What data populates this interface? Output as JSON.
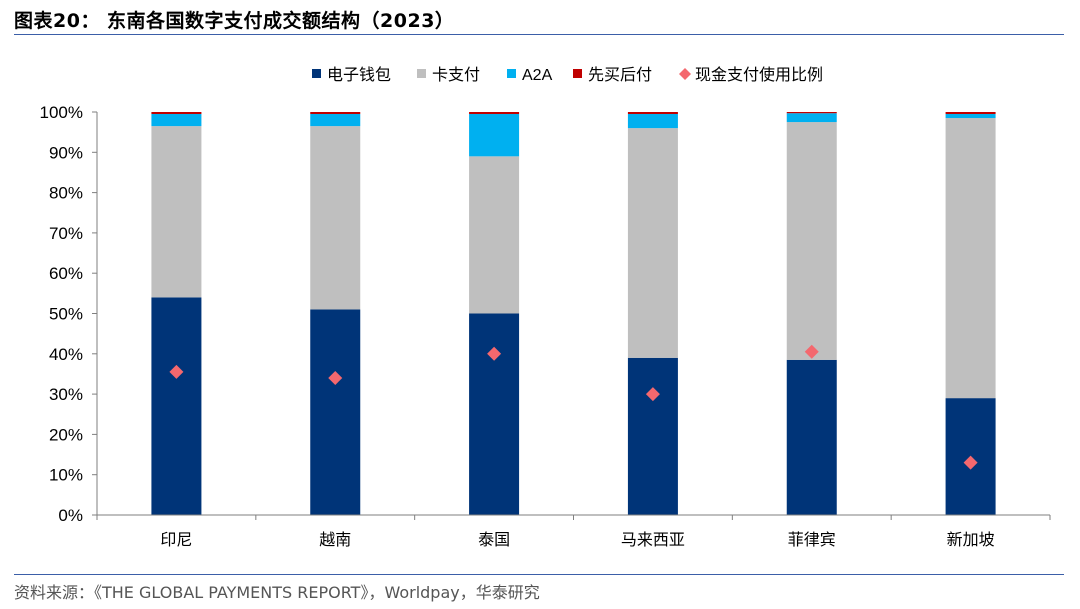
{
  "header": {
    "title": "图表20：  东南各国数字支付成交额结构（2023）"
  },
  "footer": {
    "source": "资料来源：《THE GLOBAL PAYMENTS REPORT》，Worldpay，华泰研究"
  },
  "colors": {
    "e_wallet": "#003478",
    "card": "#bfbfbf",
    "a2a": "#00b0f0",
    "bnpl": "#c00000",
    "cash": "#f4686e",
    "axis": "#7f7f7f"
  },
  "chart_data": {
    "type": "bar",
    "stacked": true,
    "categories": [
      "印尼",
      "越南",
      "泰国",
      "马来西亚",
      "菲律宾",
      "新加坡"
    ],
    "series": [
      {
        "name": "电子钱包",
        "values": [
          54,
          51,
          50,
          39,
          38.5,
          29
        ]
      },
      {
        "name": "卡支付",
        "values": [
          42.5,
          45.5,
          39,
          57,
          59,
          69.5
        ]
      },
      {
        "name": "A2A",
        "values": [
          3,
          3,
          10.5,
          3.5,
          2.2,
          1
        ]
      },
      {
        "name": "先买后付",
        "values": [
          0.5,
          0.5,
          0.5,
          0.5,
          0.3,
          0.5
        ]
      }
    ],
    "markers": {
      "name": "现金支付使用比例",
      "values": [
        35.5,
        34,
        40,
        30,
        40.5,
        13
      ]
    },
    "ylim": [
      0,
      100
    ],
    "yticks": [
      "0%",
      "10%",
      "20%",
      "30%",
      "40%",
      "50%",
      "60%",
      "70%",
      "80%",
      "90%",
      "100%"
    ],
    "legend_position": "top",
    "grid": false
  }
}
